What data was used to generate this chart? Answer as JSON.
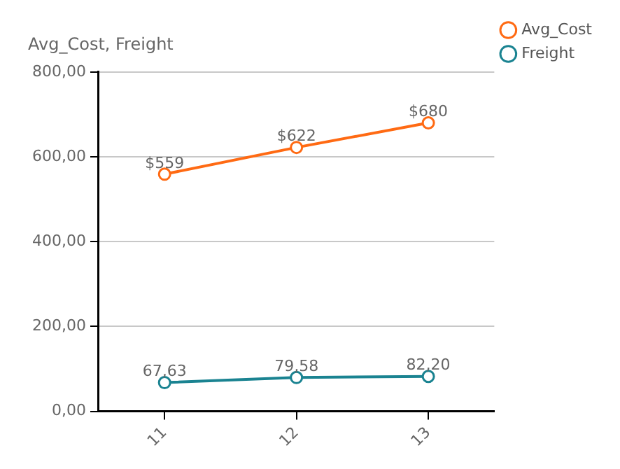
{
  "chart_data": {
    "type": "line",
    "title": "Avg_Cost, Freight",
    "categories": [
      "11",
      "12",
      "13"
    ],
    "series": [
      {
        "name": "Avg_Cost",
        "color": "#ff6a13",
        "values": [
          559,
          622,
          680
        ],
        "value_labels": [
          "$559",
          "$622",
          "$680"
        ]
      },
      {
        "name": "Freight",
        "color": "#1a8391",
        "values": [
          67.63,
          79.58,
          82.2
        ],
        "value_labels": [
          "67,63",
          "79,58",
          "82,20"
        ]
      }
    ],
    "ylim": [
      0,
      800
    ],
    "yticks": [
      {
        "value": 0,
        "label": "0,00"
      },
      {
        "value": 200,
        "label": "200,00"
      },
      {
        "value": 400,
        "label": "400,00"
      },
      {
        "value": 600,
        "label": "600,00"
      },
      {
        "value": 800,
        "label": "800,00"
      }
    ],
    "grid": "y",
    "legend": "top right",
    "marker": "circle",
    "line_style": "solid"
  }
}
